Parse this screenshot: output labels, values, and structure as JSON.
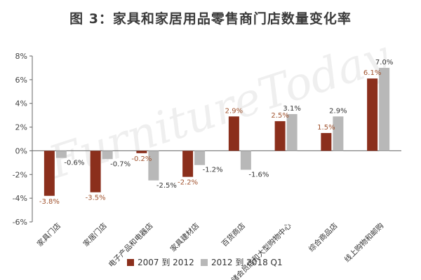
{
  "chart_data": {
    "type": "bar",
    "title": "图 3：家具和家居用品零售商门店数量变化率",
    "watermark": "FurnitureToday",
    "categories": [
      "家具门店",
      "家居门店",
      "电子产品和电器店",
      "家具建材店",
      "百货商店",
      "仓储会员店和大型购物中心",
      "综合商品店",
      "线上购物和邮购"
    ],
    "series": [
      {
        "name": "2007 到 2012",
        "color": "#8b2f1c",
        "label_color": "#a0522d",
        "values": [
          -3.8,
          -3.5,
          -0.2,
          -2.2,
          2.9,
          2.5,
          1.5,
          6.1
        ],
        "labels": [
          "-3.8%",
          "-3.5%",
          "-0.2%",
          "-2.2%",
          "2.9%",
          "2.5%",
          "1.5%",
          "6.1%"
        ]
      },
      {
        "name": "2012 到 2018 Q1",
        "color": "#b8b8b8",
        "label_color": "#333333",
        "values": [
          -0.6,
          -0.7,
          -2.5,
          -1.2,
          -1.6,
          3.1,
          2.9,
          7.0
        ],
        "labels": [
          "-0.6%",
          "-0.7%",
          "-2.5%",
          "-1.2%",
          "-1.6%",
          "3.1%",
          "2.9%",
          "7.0%"
        ]
      }
    ],
    "ylim": [
      -6,
      8
    ],
    "yticks": [
      -6,
      -4,
      -2,
      0,
      2,
      4,
      6,
      8
    ],
    "ytick_labels": [
      "-6%",
      "-4%",
      "-2%",
      "0%",
      "2%",
      "4%",
      "6%",
      "8%"
    ],
    "legend_position": "bottom",
    "grid": false
  }
}
